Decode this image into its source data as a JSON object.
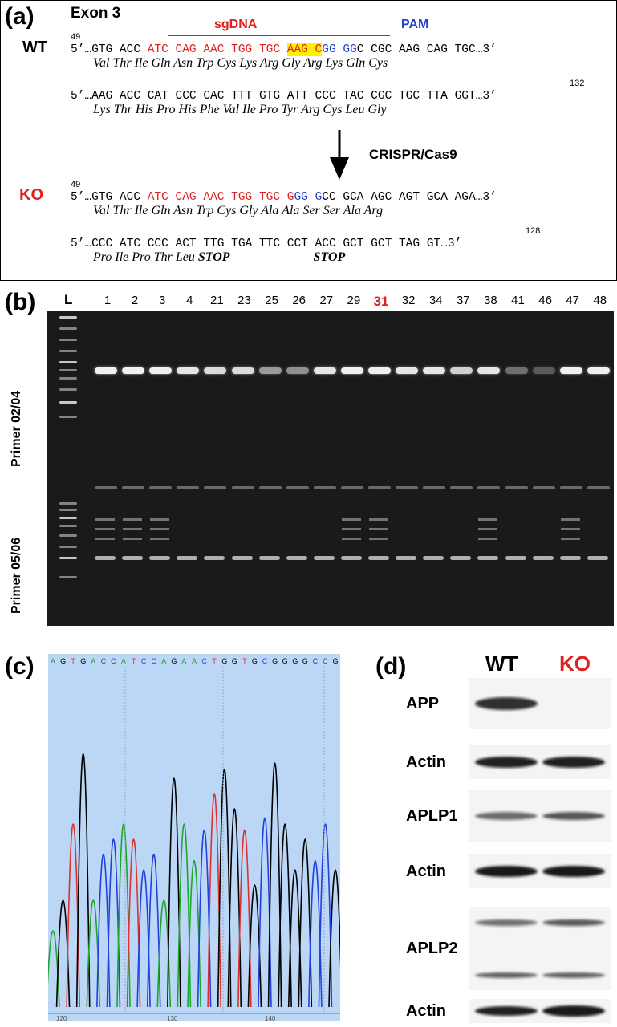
{
  "panel_a": {
    "label": "(a)",
    "exon": "Exon 3",
    "sgDNA": "sgDNA",
    "pam": "PAM",
    "wt_label": "WT",
    "ko_label": "KO",
    "crispr": "CRISPR/Cas9",
    "wt_num1": "49",
    "wt_num2": "132",
    "ko_num1": "49",
    "ko_num2": "128",
    "wt_line1_pre": "5’…GTG ACC ",
    "wt_line1_red": "ATC CAG AAC TGG TGC ",
    "wt_line1_hl": "AAG C",
    "wt_line1_blue1": "GG",
    "wt_line1_sp": " ",
    "wt_line1_blue2": "GG",
    "wt_line1_post": "C CGC AAG CAG TGC…3’",
    "wt_aa1": "Val Thr Ile Gln Asn Trp Cys Lys Arg Gly Arg Lys Gln Cys",
    "wt_line2": "5’…AAG ACC CAT CCC CAC TTT GTG ATT CCC TAC CGC TGC TTA GGT…3’",
    "wt_aa2": "Lys Thr His Pro His Phe Val Ile Pro Tyr Arg Cys Leu Gly",
    "ko_line1_pre": "5’…GTG ACC ",
    "ko_line1_red": "ATC CAG AAC TGG TGC G",
    "ko_line1_blue1": "GG",
    "ko_line1_sp": " ",
    "ko_line1_blue2": "G",
    "ko_line1_post": "CC GCA AGC AGT GCA AGA…3’",
    "ko_aa1": "Val Thr Ile Gln Asn Trp Cys Gly Ala Ala Ser Ser Ala Arg",
    "ko_line2": "5’…CCC ATC CCC ACT TTG TGA TTC CCT ACC GCT GCT TAG GT…3’",
    "ko_aa2_a": "Pro Ile Pro Thr Leu ",
    "ko_aa2_stop1": "STOP",
    "ko_aa2_stop2": "STOP"
  },
  "panel_b": {
    "label": "(b)",
    "ladder": "L",
    "lanes": [
      "1",
      "2",
      "3",
      "4",
      "21",
      "23",
      "25",
      "26",
      "27",
      "29",
      "31",
      "32",
      "34",
      "37",
      "38",
      "41",
      "46",
      "47",
      "48"
    ],
    "highlight_lane": "31",
    "primer_top": "Primer 02/04",
    "primer_bottom": "Primer 05/06"
  },
  "panel_c": {
    "label": "(c)",
    "bases": [
      "A",
      "G",
      "T",
      "G",
      "A",
      "C",
      "C",
      "A",
      "T",
      "C",
      "C",
      "A",
      "G",
      "A",
      "A",
      "C",
      "T",
      "G",
      "G",
      "T",
      "G",
      "C",
      "G",
      "G",
      "G",
      "G",
      "C",
      "C",
      "G"
    ],
    "ticks": [
      "120",
      "130",
      "140"
    ]
  },
  "panel_d": {
    "label": "(d)",
    "wt": "WT",
    "ko": "KO",
    "rows": [
      "APP",
      "Actin",
      "APLP1",
      "Actin",
      "APLP2",
      "Actin"
    ]
  },
  "colors": {
    "red": "#e02020",
    "blue": "#1f3fd0",
    "highlight": "#fff200"
  }
}
